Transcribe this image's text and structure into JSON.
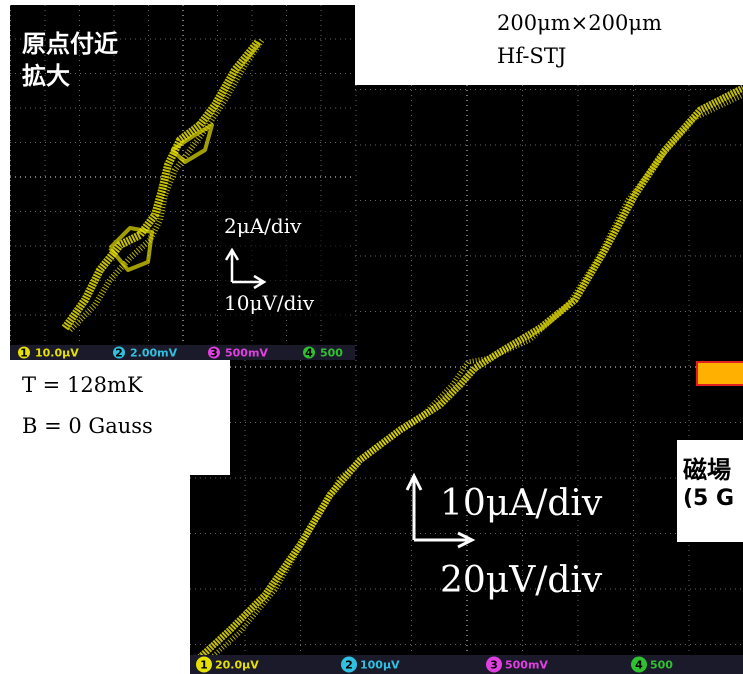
{
  "inset": {
    "title": [
      "原点付近",
      "拡大"
    ],
    "scale": {
      "y": "2μA/div",
      "x": "10μV/div"
    },
    "status_bar": [
      {
        "channel": "1",
        "value": "10.0μV"
      },
      {
        "channel": "2",
        "value": "2.00mV"
      },
      {
        "channel": "3",
        "value": "500mV"
      },
      {
        "channel": "4",
        "value": "500"
      }
    ]
  },
  "sample": [
    "200μm×200μm",
    "Hf-STJ"
  ],
  "conditions": [
    "T = 128mK",
    "B = 0 Gauss"
  ],
  "field_note": [
    "磁場",
    "(5 G"
  ],
  "main": {
    "scale": {
      "y": "10μA/div",
      "x": "20μV/div"
    },
    "status_bar": [
      {
        "channel": "1",
        "value": "20.0μV"
      },
      {
        "channel": "2",
        "value": "100μV"
      },
      {
        "channel": "3",
        "value": "500mV"
      },
      {
        "channel": "4",
        "value": "500"
      }
    ]
  }
}
